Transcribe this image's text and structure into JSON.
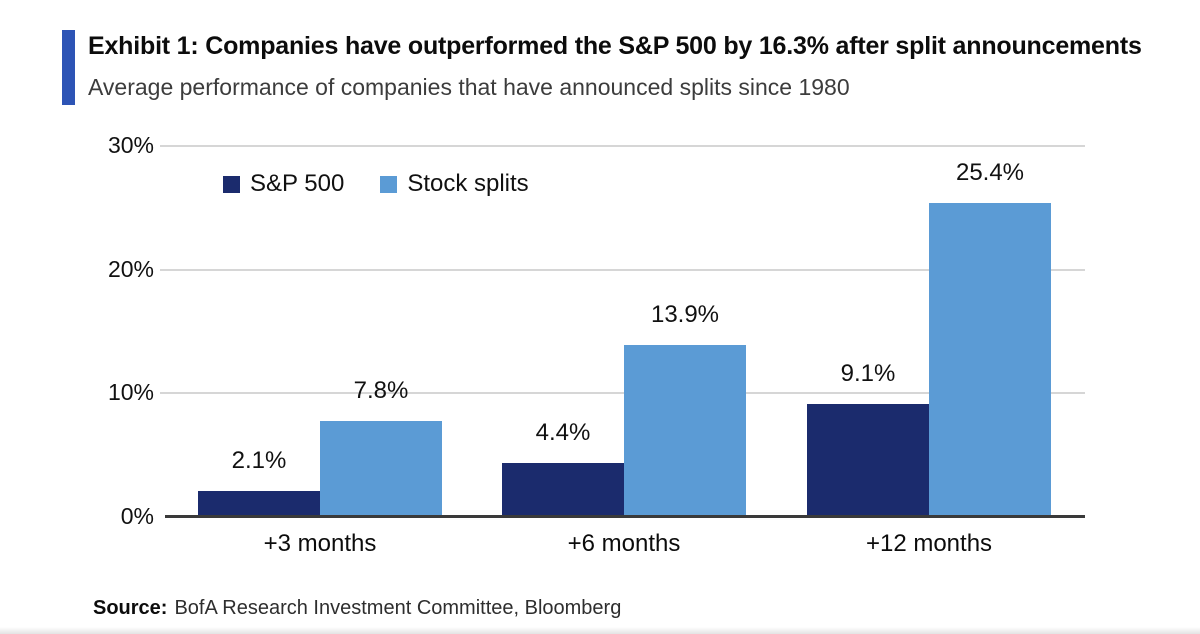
{
  "header": {
    "title": "Exhibit 1: Companies have outperformed the S&P 500 by 16.3% after split announcements",
    "subtitle": "Average performance of companies that have announced splits since 1980"
  },
  "chart_data": {
    "type": "bar",
    "title": "Exhibit 1: Companies have outperformed the S&P 500 by 16.3% after split announcements",
    "subtitle": "Average performance of companies that have announced splits since 1980",
    "categories": [
      "+3 months",
      "+6 months",
      "+12 months"
    ],
    "series": [
      {
        "name": "S&P 500",
        "color": "#1b2b6d",
        "values": [
          2.1,
          4.4,
          9.1
        ],
        "labels": [
          "2.1%",
          "4.4%",
          "9.1%"
        ]
      },
      {
        "name": "Stock splits",
        "color": "#5b9bd5",
        "values": [
          7.8,
          13.9,
          25.4
        ],
        "labels": [
          "7.8%",
          "13.9%",
          "25.4%"
        ]
      }
    ],
    "xlabel": "",
    "ylabel": "",
    "ylim": [
      0,
      30
    ],
    "yticks": [
      {
        "value": 0,
        "label": "0%"
      },
      {
        "value": 10,
        "label": "10%"
      },
      {
        "value": 20,
        "label": "20%"
      },
      {
        "value": 30,
        "label": "30%"
      }
    ],
    "grid": "horizontal",
    "legend_position": "inside-top-left"
  },
  "source": {
    "label": "Source:",
    "text": "BofA Research Investment Committee, Bloomberg"
  },
  "colors": {
    "accent_bar": "#2d54b5",
    "sp500_bar": "#1b2b6d",
    "stock_splits_bar": "#5b9bd5",
    "gridline": "#d6d6d6",
    "axis_line": "#3a3a3a"
  }
}
